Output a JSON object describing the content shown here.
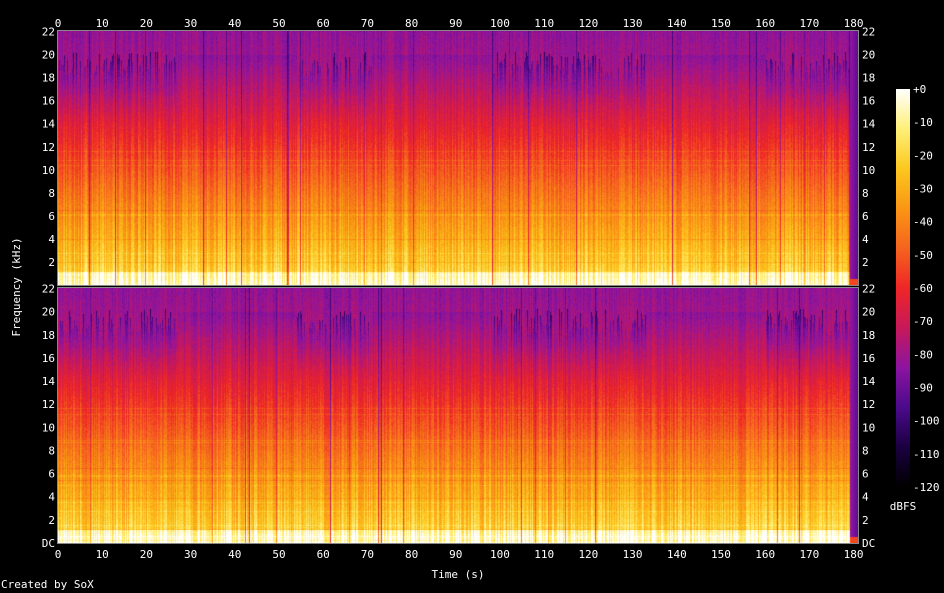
{
  "chart_data": {
    "type": "heatmap",
    "kind": "spectrogram",
    "channels": 2,
    "xlabel": "Time (s)",
    "ylabel": "Frequency (kHz)",
    "x_ticks": [
      0,
      10,
      20,
      30,
      40,
      50,
      60,
      70,
      80,
      90,
      100,
      110,
      120,
      130,
      140,
      150,
      160,
      170,
      180
    ],
    "xlim": [
      0,
      181
    ],
    "y_ticks_top": [
      "2",
      "4",
      "6",
      "8",
      "10",
      "12",
      "14",
      "16",
      "18",
      "20",
      "22"
    ],
    "y_ticks_bottom": [
      "DC",
      "2",
      "4",
      "6",
      "8",
      "10",
      "12",
      "14",
      "16",
      "18",
      "20",
      "22"
    ],
    "ylim_khz": [
      0,
      22.05
    ],
    "colorbar": {
      "label": "dBFS",
      "ticks": [
        "+0",
        "-10",
        "-20",
        "-30",
        "-40",
        "-50",
        "-60",
        "-70",
        "-80",
        "-90",
        "-100",
        "-110",
        "-120"
      ],
      "range_db": [
        -120,
        0
      ],
      "stops": [
        "#000000",
        "#1a0040",
        "#4b0a8c",
        "#8c14a0",
        "#c8185a",
        "#ee2626",
        "#f5641e",
        "#fa9614",
        "#fcc81e",
        "#fff078",
        "#ffffff"
      ]
    },
    "full_band_segments_s": [
      [
        27,
        54
      ],
      [
        71,
        98
      ],
      [
        133,
        160
      ]
    ],
    "audio_end_s": 179,
    "credit": "Created by SoX"
  }
}
